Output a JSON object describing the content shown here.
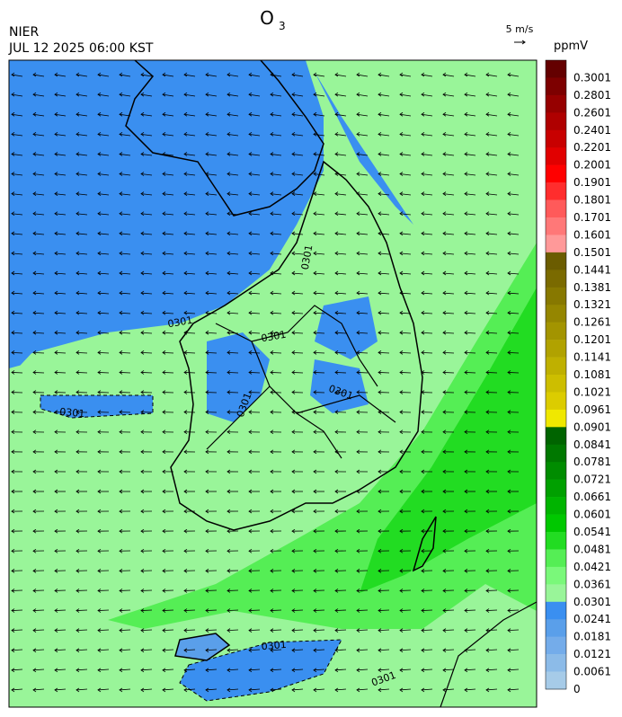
{
  "header": {
    "title": "O",
    "title_subscript": "3",
    "agency": "NIER",
    "datetime": "JUL 12 2025 06:00 KST",
    "vector_scale": "5 m/s",
    "unit": "ppmV"
  },
  "map": {
    "contour_labels": [
      "0301",
      "0301",
      "0301",
      "0301",
      "0301",
      "0301",
      "0301",
      "0301"
    ]
  },
  "colorbar": {
    "labels": [
      "0.3001",
      "0.2801",
      "0.2601",
      "0.2401",
      "0.2201",
      "0.2001",
      "0.1901",
      "0.1801",
      "0.1701",
      "0.1601",
      "0.1501",
      "0.1441",
      "0.1381",
      "0.1321",
      "0.1261",
      "0.1201",
      "0.1141",
      "0.1081",
      "0.1021",
      "0.0961",
      "0.0901",
      "0.0841",
      "0.0781",
      "0.0721",
      "0.0661",
      "0.0601",
      "0.0541",
      "0.0481",
      "0.0421",
      "0.0361",
      "0.0301",
      "0.0241",
      "0.0181",
      "0.0121",
      "0.0061",
      "0"
    ],
    "colors": [
      "#640000",
      "#7d0000",
      "#960000",
      "#af0000",
      "#c80000",
      "#e10000",
      "#ff0000",
      "#ff2d2d",
      "#ff5a5a",
      "#ff7878",
      "#ff9999",
      "#6b5c00",
      "#7a6a00",
      "#877800",
      "#958600",
      "#a39400",
      "#b1a200",
      "#bfb000",
      "#cdbe00",
      "#dccc00",
      "#f0e800",
      "#006400",
      "#007800",
      "#008c00",
      "#00a000",
      "#00b400",
      "#00c800",
      "#22dc22",
      "#55ee55",
      "#7af87a",
      "#99f599",
      "#3a8ff0",
      "#5a9fea",
      "#74acea",
      "#8cbbe8",
      "#a6cbe8"
    ]
  }
}
